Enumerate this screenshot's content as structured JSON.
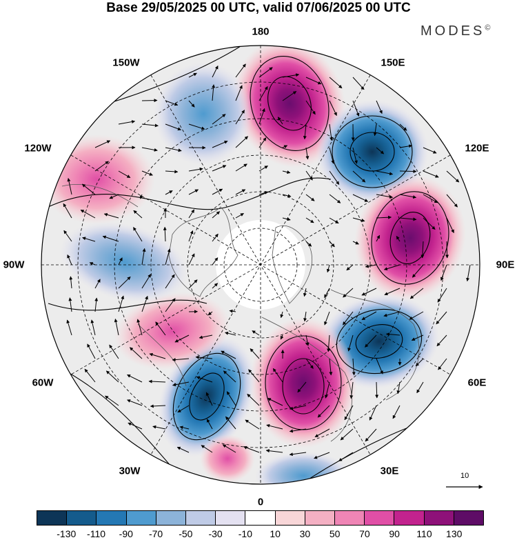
{
  "title": "Base 29/05/2025 00 UTC, valid 07/06/2025 00 UTC",
  "brand": "MODES",
  "brand_mark": "©",
  "lon_labels": [
    "180",
    "150E",
    "120E",
    "90E",
    "60E",
    "30E",
    "0",
    "30W",
    "60W",
    "90W",
    "120W",
    "150W"
  ],
  "reference_vector": {
    "label": "10",
    "icon": "arrow-right-icon"
  },
  "colorbar": {
    "ticks": [
      "-130",
      "-110",
      "-90",
      "-70",
      "-50",
      "-30",
      "-10",
      "10",
      "30",
      "50",
      "70",
      "90",
      "110",
      "130"
    ],
    "colors": [
      "#0d3557",
      "#145b8c",
      "#2478b4",
      "#4f9bcf",
      "#8cb3d9",
      "#bfcbe6",
      "#e4e1f1",
      "#ffffff",
      "#f8d6d8",
      "#f4b0c3",
      "#ef85b5",
      "#e04fa6",
      "#c2238e",
      "#8e1179",
      "#5e0c66"
    ]
  },
  "anomalies": [
    {
      "sign": "+",
      "level": 110,
      "near": "150E-180"
    },
    {
      "sign": "-",
      "level": -110,
      "near": "120E"
    },
    {
      "sign": "+",
      "level": 110,
      "near": "90E"
    },
    {
      "sign": "-",
      "level": -110,
      "near": "60E"
    },
    {
      "sign": "+",
      "level": 90,
      "near": "0-30E"
    },
    {
      "sign": "-",
      "level": -90,
      "near": "30W"
    },
    {
      "sign": "+",
      "level": 50,
      "near": "60W"
    },
    {
      "sign": "-",
      "level": -50,
      "near": "90W"
    },
    {
      "sign": "+",
      "level": 30,
      "near": "120W"
    },
    {
      "sign": "-",
      "level": -50,
      "near": "150W"
    }
  ]
}
